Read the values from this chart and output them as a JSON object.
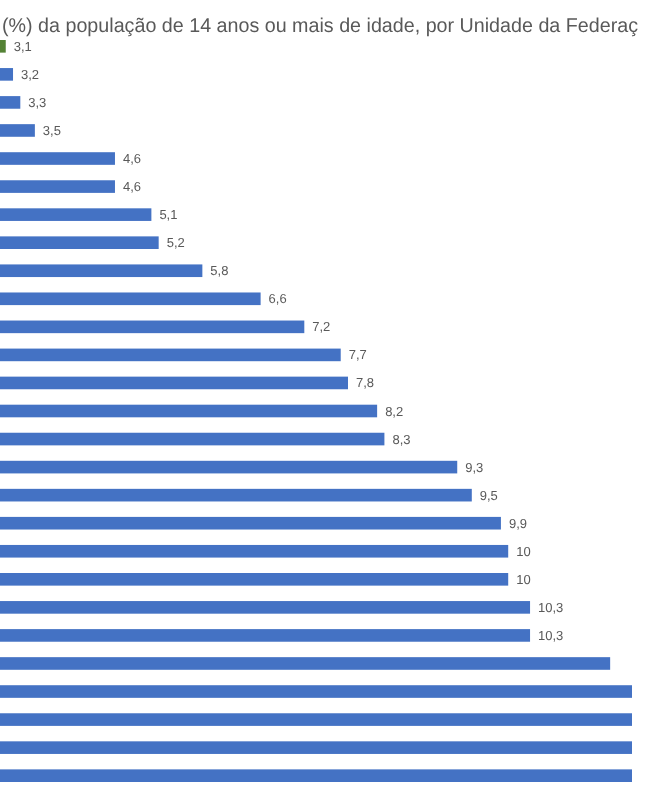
{
  "chart_data": {
    "type": "bar",
    "orientation": "horizontal",
    "title": "(%) da população de 14 anos ou mais de idade, por Unidade da Federaç",
    "categories": [
      null,
      null,
      null,
      null,
      null,
      null,
      null,
      null,
      null,
      null,
      null,
      null,
      null,
      null,
      null,
      null,
      null,
      null,
      null,
      null,
      null,
      null,
      null,
      null,
      null,
      null,
      null
    ],
    "values": [
      3.1,
      3.2,
      3.3,
      3.5,
      4.6,
      4.6,
      5.1,
      5.2,
      5.8,
      6.6,
      7.2,
      7.7,
      7.8,
      8.2,
      8.3,
      9.3,
      9.5,
      9.9,
      10,
      10,
      10.3,
      10.3,
      11.4,
      11.7,
      11.7,
      11.7,
      11.7
    ],
    "colors": [
      "#548235",
      "#4472c4",
      "#4472c4",
      "#4472c4",
      "#4472c4",
      "#4472c4",
      "#4472c4",
      "#4472c4",
      "#4472c4",
      "#4472c4",
      "#4472c4",
      "#4472c4",
      "#4472c4",
      "#4472c4",
      "#4472c4",
      "#4472c4",
      "#4472c4",
      "#4472c4",
      "#4472c4",
      "#4472c4",
      "#4472c4",
      "#4472c4",
      "#4472c4",
      "#4472c4",
      "#4472c4",
      "#4472c4",
      "#4472c4"
    ],
    "value_labels": [
      "3,1",
      "3,2",
      "3,3",
      "3,5",
      "4,6",
      "4,6",
      "5,1",
      "5,2",
      "5,8",
      "6,6",
      "7,2",
      "7,7",
      "7,8",
      "8,2",
      "8,3",
      "9,3",
      "9,5",
      "9,9",
      "10",
      "10",
      "10,3",
      "10,3",
      null,
      null,
      null,
      null,
      null
    ],
    "xlim": [
      0,
      11.7
    ]
  }
}
